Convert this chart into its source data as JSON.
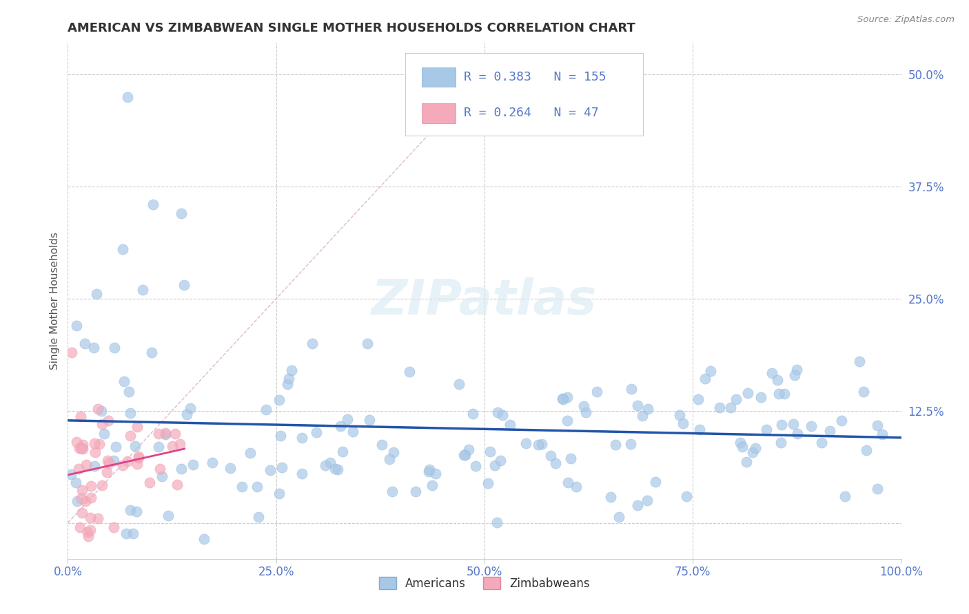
{
  "title": "AMERICAN VS ZIMBABWEAN SINGLE MOTHER HOUSEHOLDS CORRELATION CHART",
  "source": "Source: ZipAtlas.com",
  "ylabel": "Single Mother Households",
  "xlim": [
    0.0,
    1.0
  ],
  "ylim": [
    -0.04,
    0.535
  ],
  "american_color": "#A8C8E8",
  "american_edge_color": "#85AACC",
  "zimbabwean_color": "#F4AABB",
  "zimbabwean_edge_color": "#E08898",
  "american_R": 0.383,
  "american_N": 155,
  "zimbabwean_R": 0.264,
  "zimbabwean_N": 47,
  "trendline_am_color": "#2255AA",
  "trendline_zim_color": "#DD4488",
  "watermark": "ZIPatlas",
  "tick_color": "#5577CC",
  "grid_color": "#CCCCCC",
  "title_color": "#333333",
  "source_color": "#888888"
}
